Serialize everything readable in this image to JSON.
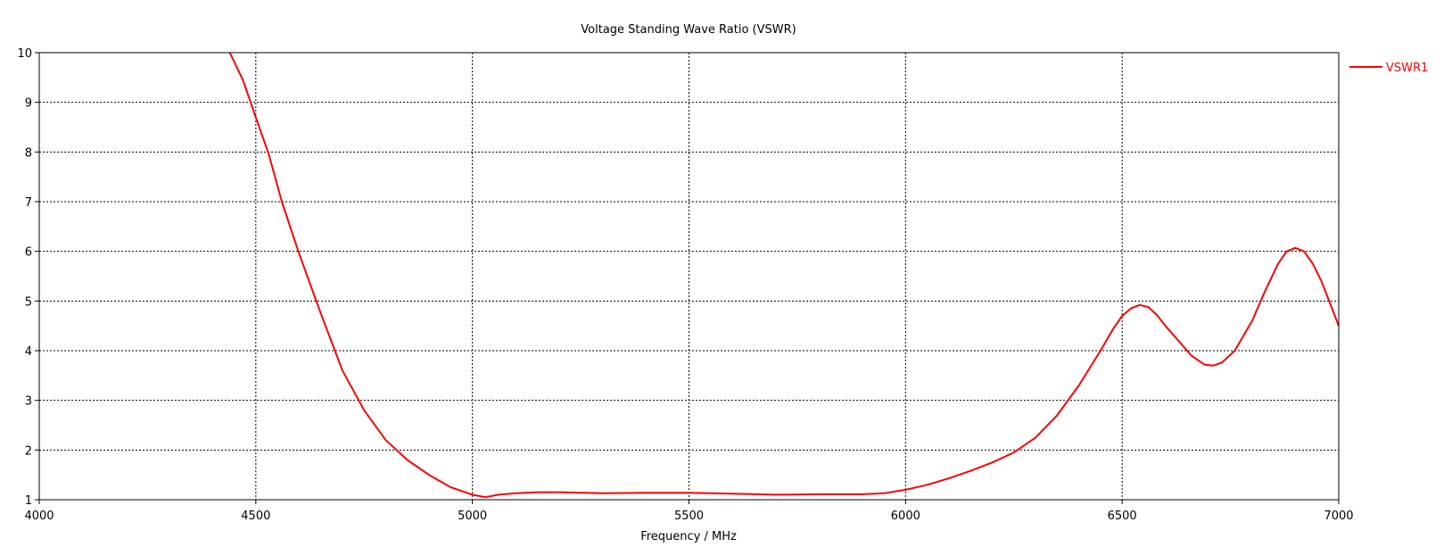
{
  "colors": {
    "series": "#ff0000",
    "axis": "#000000",
    "grid": "#000000",
    "background": "#ffffff"
  },
  "chart_data": {
    "type": "line",
    "title": "Voltage Standing Wave Ratio (VSWR)",
    "xlabel": "Frequency / MHz",
    "ylabel": "",
    "xlim": [
      4000,
      7000
    ],
    "ylim": [
      1,
      10
    ],
    "x_ticks": [
      4000,
      4500,
      5000,
      5500,
      6000,
      6500,
      7000
    ],
    "y_ticks": [
      1,
      2,
      3,
      4,
      5,
      6,
      7,
      8,
      9,
      10
    ],
    "grid": true,
    "grid_style": "dotted",
    "legend_position": "right",
    "series": [
      {
        "name": "VSWR1",
        "color": "#ff0000",
        "x": [
          4440,
          4470,
          4500,
          4530,
          4560,
          4600,
          4650,
          4700,
          4750,
          4800,
          4850,
          4900,
          4950,
          5000,
          5030,
          5060,
          5100,
          5150,
          5200,
          5300,
          5400,
          5500,
          5600,
          5700,
          5800,
          5900,
          5950,
          6000,
          6050,
          6100,
          6150,
          6200,
          6250,
          6300,
          6350,
          6400,
          6450,
          6480,
          6500,
          6520,
          6540,
          6560,
          6580,
          6600,
          6630,
          6660,
          6690,
          6710,
          6730,
          6760,
          6800,
          6830,
          6860,
          6880,
          6900,
          6920,
          6940,
          6960,
          6980,
          7000
        ],
        "y": [
          10.0,
          9.45,
          8.7,
          7.95,
          7.0,
          5.95,
          4.75,
          3.6,
          2.8,
          2.2,
          1.8,
          1.5,
          1.25,
          1.1,
          1.05,
          1.1,
          1.13,
          1.15,
          1.15,
          1.13,
          1.14,
          1.14,
          1.12,
          1.1,
          1.11,
          1.11,
          1.13,
          1.2,
          1.3,
          1.43,
          1.58,
          1.75,
          1.95,
          2.25,
          2.7,
          3.3,
          4.0,
          4.45,
          4.7,
          4.85,
          4.92,
          4.88,
          4.72,
          4.5,
          4.2,
          3.9,
          3.72,
          3.7,
          3.76,
          4.0,
          4.6,
          5.2,
          5.75,
          6.0,
          6.07,
          6.0,
          5.75,
          5.4,
          4.95,
          4.5
        ]
      }
    ]
  }
}
